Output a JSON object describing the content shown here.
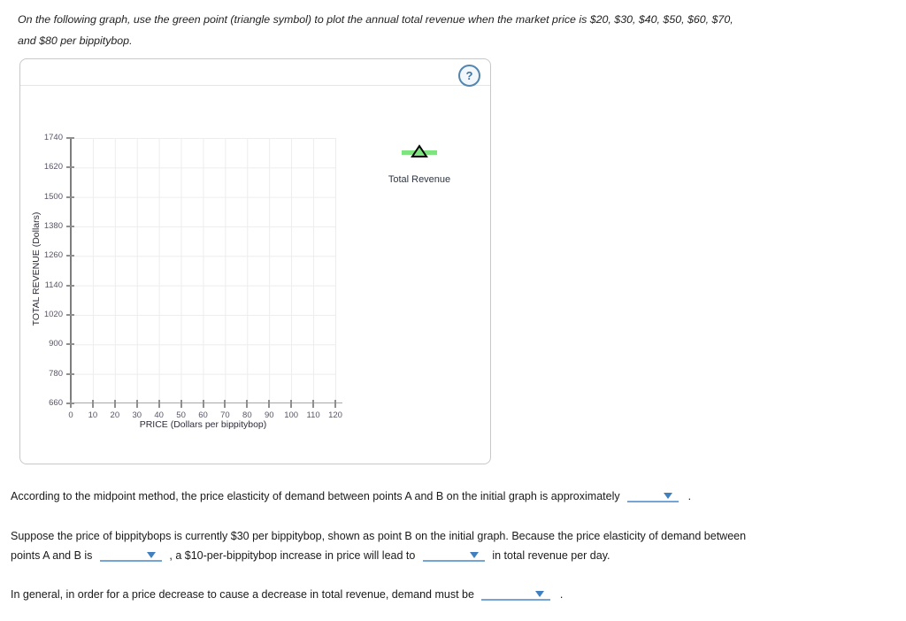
{
  "instruction": {
    "line1": "On the following graph, use the green point (triangle symbol) to plot the annual total revenue when the market price is $20, $30, $40, $50, $60, $70,",
    "line2": "and $80 per bippitybop."
  },
  "panel": {
    "help_label": "?"
  },
  "chart_data": {
    "type": "scatter",
    "title": "",
    "xlabel": "PRICE (Dollars per bippitybop)",
    "ylabel": "TOTAL REVENUE (Dollars)",
    "xlim": [
      0,
      120
    ],
    "ylim": [
      660,
      1740
    ],
    "x_ticks": [
      0,
      10,
      20,
      30,
      40,
      50,
      60,
      70,
      80,
      90,
      100,
      110,
      120
    ],
    "y_ticks": [
      660,
      780,
      900,
      1020,
      1140,
      1260,
      1380,
      1500,
      1620,
      1740
    ],
    "grid": true,
    "legend_position": "right-of-plot",
    "series": [
      {
        "name": "Total Revenue",
        "marker": "triangle",
        "marker_fill": "#7ee57e",
        "marker_outline": "#000000",
        "points": []
      }
    ]
  },
  "questions": {
    "q1_before": "According to the midpoint method, the price elasticity of demand between points A and B on the initial graph is approximately",
    "q1_after": ".",
    "q2_line1": "Suppose the price of bippitybops is currently $30 per bippitybop, shown as point B on the initial graph. Because the price elasticity of demand between",
    "q2_line2_before": "points A and B is",
    "q2_line2_mid": ", a $10-per-bippitybop increase in price will lead to",
    "q2_line2_after": "in total revenue per day.",
    "q3_before": "In general, in order for a price decrease to cause a decrease in total revenue, demand must be",
    "q3_after": "."
  },
  "colors": {
    "dropdown_blue": "#4080bf",
    "underline_blue": "#74a5d4",
    "point_green": "#7ee57e",
    "help_blue": "#41719c",
    "grid_gray": "#ededed"
  }
}
